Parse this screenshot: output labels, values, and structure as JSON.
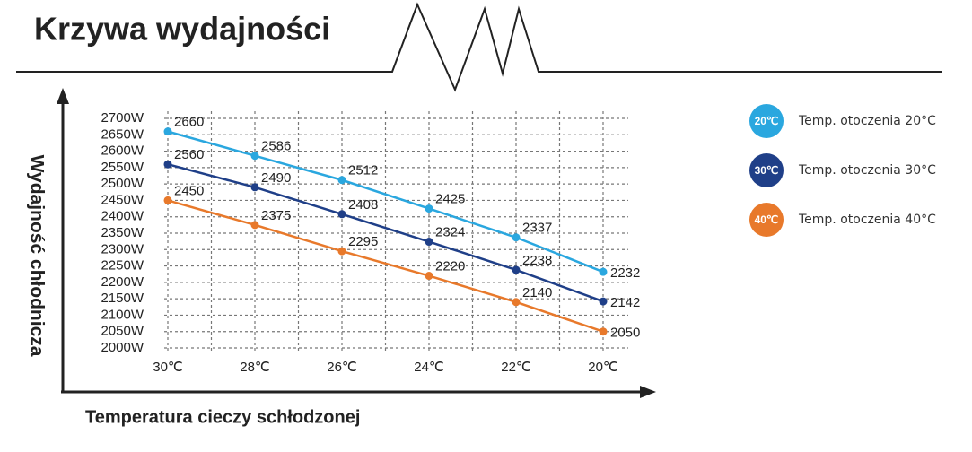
{
  "chart_data": {
    "type": "line",
    "title": "Krzywa wydajności",
    "x_label": "Temperatura cieczy schłodzonej",
    "y_label": "Wydajność chłodnicza",
    "categories": [
      "30℃",
      "28℃",
      "26℃",
      "24℃",
      "22℃",
      "20℃"
    ],
    "ylim": [
      2000,
      2700
    ],
    "yticks": [
      {
        "value": 2000,
        "label": "2000W"
      },
      {
        "value": 2050,
        "label": "2050W"
      },
      {
        "value": 2100,
        "label": "2100W"
      },
      {
        "value": 2150,
        "label": "2150W"
      },
      {
        "value": 2200,
        "label": "2200W"
      },
      {
        "value": 2250,
        "label": "2250W"
      },
      {
        "value": 2300,
        "label": "2300W"
      },
      {
        "value": 2350,
        "label": "2350W"
      },
      {
        "value": 2400,
        "label": "2400W"
      },
      {
        "value": 2450,
        "label": "2450W"
      },
      {
        "value": 2500,
        "label": "2500W"
      },
      {
        "value": 2550,
        "label": "2550W"
      },
      {
        "value": 2600,
        "label": "2600W"
      },
      {
        "value": 2650,
        "label": "2650W"
      },
      {
        "value": 2700,
        "label": "2700W"
      }
    ],
    "grid": true,
    "series": [
      {
        "name": "Temp. otoczenia 20°C",
        "badge": "20℃",
        "color": "#2aa7df",
        "values": [
          2660,
          2586,
          2512,
          2425,
          2337,
          2232
        ]
      },
      {
        "name": "Temp. otoczenia 30°C",
        "badge": "30℃",
        "color": "#1f3f88",
        "values": [
          2560,
          2490,
          2408,
          2324,
          2238,
          2142
        ]
      },
      {
        "name": "Temp. otoczenia 40°C",
        "badge": "40℃",
        "color": "#e8792b",
        "values": [
          2450,
          2375,
          2295,
          2220,
          2140,
          2050
        ]
      }
    ]
  }
}
